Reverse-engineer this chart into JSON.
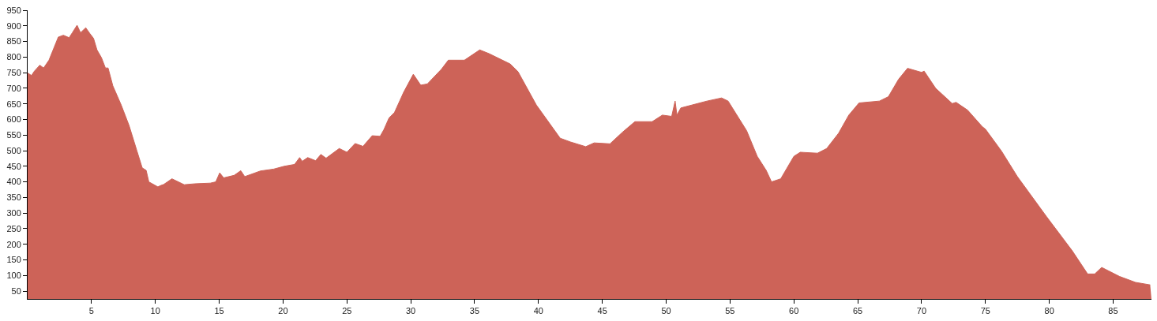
{
  "chart_data": {
    "type": "area",
    "color": "#cd6358",
    "x": [
      0,
      0.3,
      0.53,
      0.95,
      1.25,
      1.67,
      2.4,
      2.8,
      3.25,
      3.5,
      3.87,
      4.14,
      4.55,
      4.86,
      5.16,
      5.43,
      5.78,
      6.09,
      6.3,
      6.67,
      7.33,
      7.94,
      8.56,
      8.97,
      9.28,
      9.49,
      10.2,
      10.4,
      10.66,
      11.3,
      12.26,
      13.1,
      14.3,
      14.73,
      15.04,
      15.35,
      16.17,
      16.69,
      17.0,
      18.23,
      19.26,
      20.08,
      20.9,
      21.3,
      21.5,
      21.93,
      22.55,
      22.96,
      23.37,
      24.4,
      25.0,
      25.64,
      26.26,
      26.98,
      27.6,
      27.9,
      28.3,
      28.72,
      29.44,
      30.2,
      30.78,
      31.3,
      32.4,
      32.94,
      34.2,
      35.4,
      36.13,
      37.78,
      38.4,
      39.84,
      41.7,
      42.5,
      43.7,
      44.36,
      45.6,
      46.6,
      47.55,
      48.9,
      49.7,
      50.43,
      50.7,
      50.84,
      51.15,
      53.2,
      54.34,
      54.85,
      56.3,
      57.13,
      57.83,
      58.25,
      58.97,
      60.0,
      60.5,
      61.85,
      62.57,
      63.5,
      64.3,
      65.1,
      66.7,
      67.4,
      68.2,
      68.9,
      70.0,
      70.2,
      71.1,
      72.4,
      72.7,
      73.6,
      74.75,
      75.0,
      76.25,
      77.5,
      79.76,
      81.8,
      83.0,
      83.56,
      84.1,
      85.5,
      86.75,
      87.9
    ],
    "values": [
      749,
      741,
      755,
      774,
      765,
      790,
      864,
      870,
      862,
      878,
      902,
      878,
      894,
      876,
      860,
      823,
      798,
      765,
      765,
      708,
      646,
      581,
      499,
      445,
      437,
      400,
      384,
      388,
      392,
      410,
      391,
      394,
      396,
      400,
      429,
      413,
      421,
      436,
      417,
      435,
      441,
      450,
      456,
      478,
      466,
      478,
      468,
      488,
      476,
      507,
      495,
      523,
      514,
      548,
      546,
      568,
      605,
      622,
      687,
      745,
      710,
      714,
      761,
      790,
      790,
      823,
      811,
      778,
      753,
      646,
      540,
      528,
      513,
      525,
      522,
      560,
      593,
      593,
      614,
      610,
      659,
      614,
      637,
      659,
      669,
      659,
      564,
      482,
      437,
      400,
      410,
      482,
      495,
      492,
      507,
      556,
      614,
      653,
      659,
      673,
      729,
      764,
      751,
      755,
      700,
      651,
      655,
      630,
      577,
      569,
      499,
      417,
      290,
      179,
      105,
      105,
      126,
      97,
      78,
      70
    ],
    "xlim": [
      0,
      88
    ],
    "ylim": [
      25,
      950
    ],
    "xticks": [
      5,
      10,
      15,
      20,
      25,
      30,
      35,
      40,
      45,
      50,
      55,
      60,
      65,
      70,
      75,
      80,
      85
    ],
    "yticks": [
      50,
      100,
      150,
      200,
      250,
      300,
      350,
      400,
      450,
      500,
      550,
      600,
      650,
      700,
      750,
      800,
      850,
      900,
      950
    ],
    "marker": "none"
  }
}
